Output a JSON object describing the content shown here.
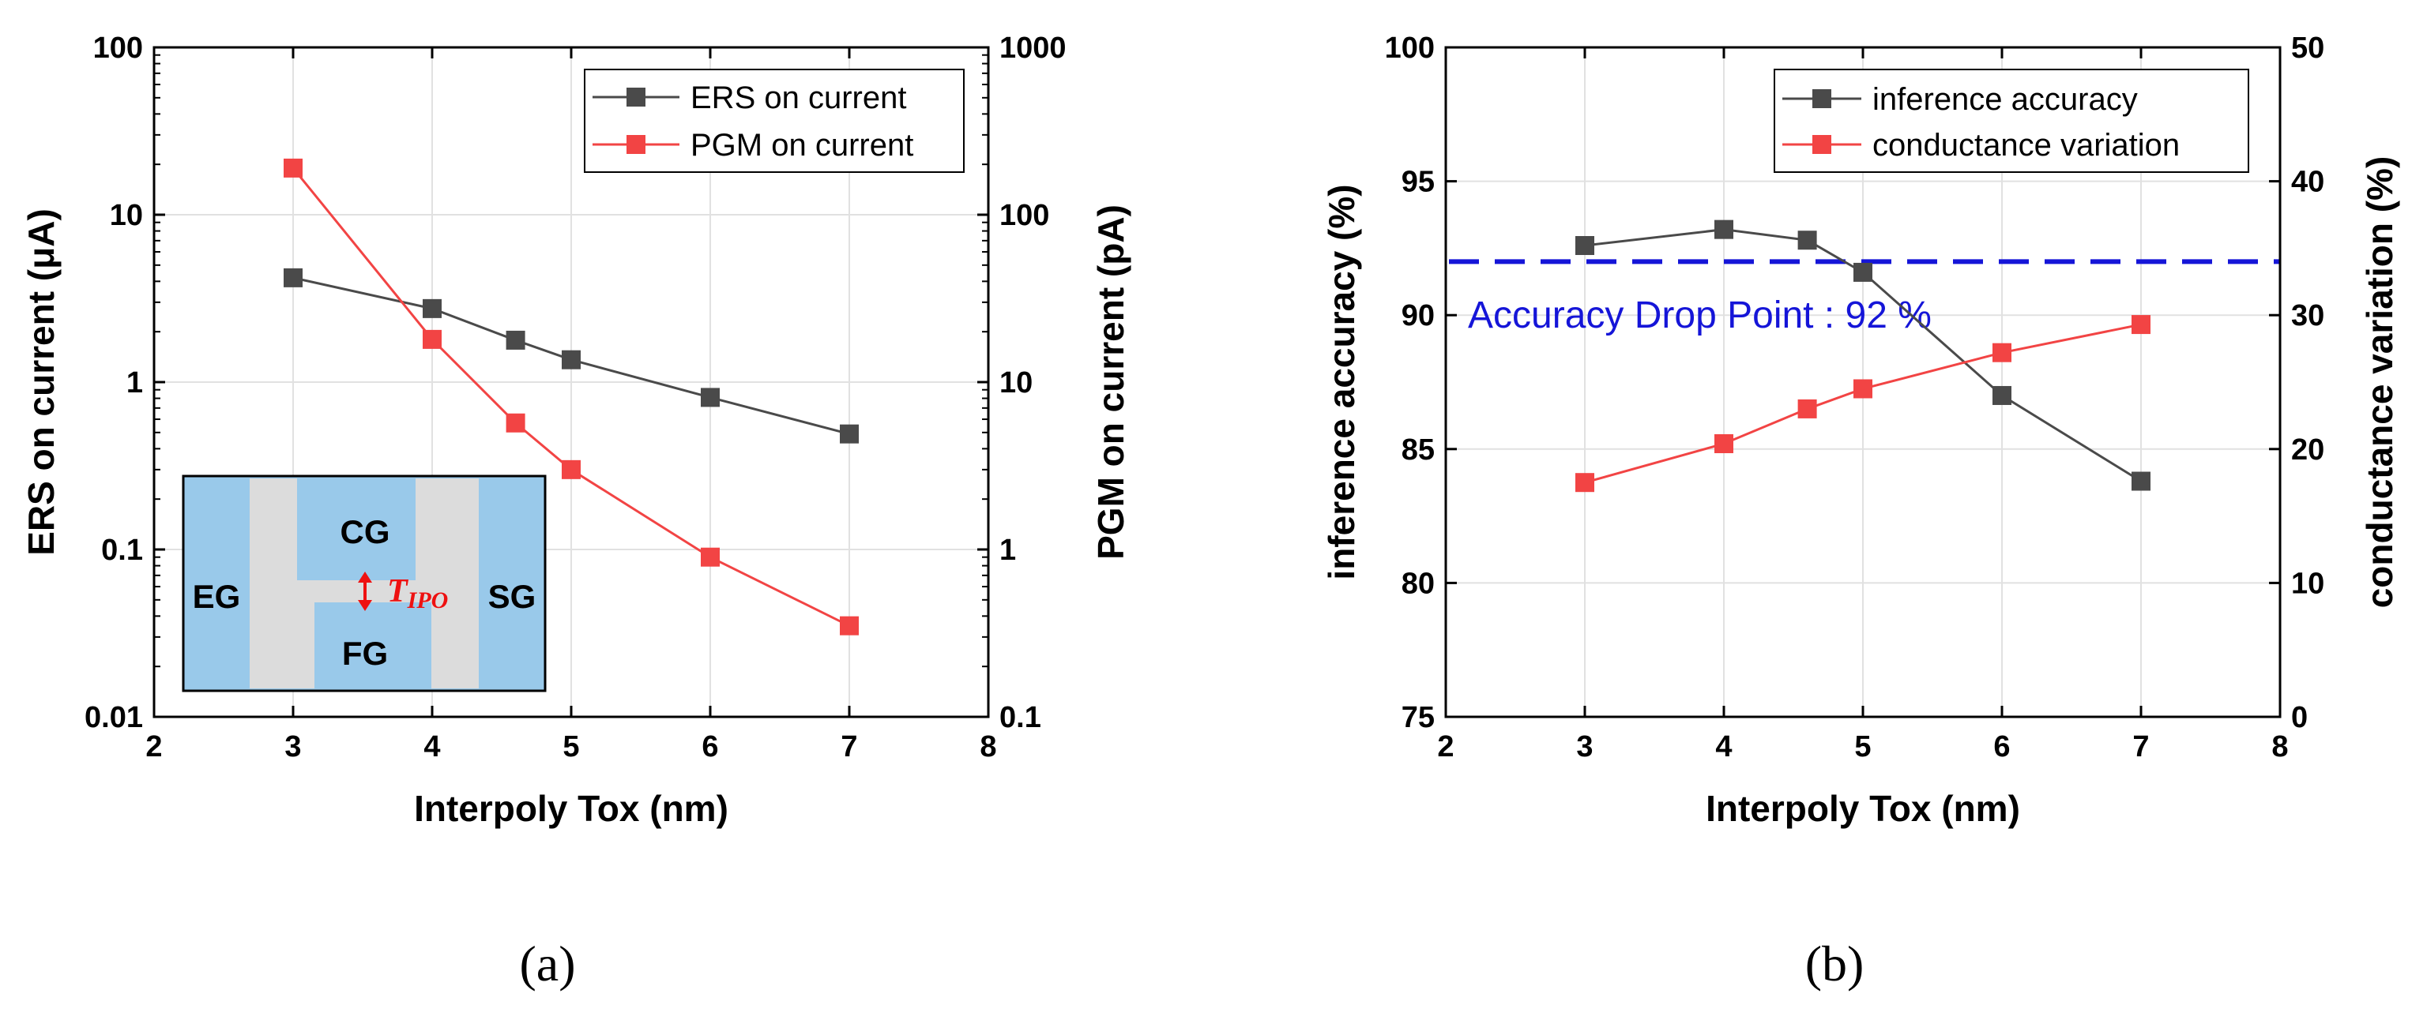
{
  "chart_data": [
    {
      "type": "line",
      "panel_label": "(a)",
      "xlabel": "Interpoly Tox (nm)",
      "ylabel": "ERS on current (μA)",
      "ylabel_right": "PGM on current (pA)",
      "xlim": [
        2,
        8
      ],
      "xticks": [
        "2",
        "3",
        "4",
        "5",
        "6",
        "7",
        "8"
      ],
      "ylim_left": [
        0.01,
        100
      ],
      "yticks_left": [
        "0.01",
        "0.1",
        "1",
        "10",
        "100"
      ],
      "ylim_right": [
        0.1,
        1000
      ],
      "yticks_right": [
        "0.1",
        "1",
        "10",
        "100",
        "1000"
      ],
      "yscale": "log",
      "grid": true,
      "legend_position": "top-right",
      "series": [
        {
          "name": "ERS on current",
          "axis": "left",
          "color": "#4a4a4a",
          "x": [
            3,
            4,
            4.6,
            5,
            6,
            7
          ],
          "y": [
            4.2,
            2.75,
            1.78,
            1.36,
            0.81,
            0.49
          ]
        },
        {
          "name": "PGM on current",
          "axis": "right",
          "color": "#f24444",
          "x": [
            3,
            4,
            4.6,
            5,
            6,
            7
          ],
          "y": [
            190,
            18,
            5.7,
            3.0,
            0.9,
            0.35
          ]
        }
      ],
      "inset": {
        "labels": {
          "cg": "CG",
          "eg": "EG",
          "sg": "SG",
          "fg": "FG",
          "tipo_main": "T",
          "tipo_sub": "IPO"
        },
        "fill_color": "#99c9ea",
        "gap_color": "#dcdcdc",
        "arrow_color": "#ee1111"
      }
    },
    {
      "type": "line",
      "panel_label": "(b)",
      "xlabel": "Interpoly Tox (nm)",
      "ylabel": "inference accuracy (%)",
      "ylabel_right": "conductance variation (%)",
      "xlim": [
        2,
        8
      ],
      "xticks": [
        "2",
        "3",
        "4",
        "5",
        "6",
        "7",
        "8"
      ],
      "ylim_left": [
        75,
        100
      ],
      "yticks_left": [
        "75",
        "80",
        "85",
        "90",
        "95",
        "100"
      ],
      "ylim_right": [
        0,
        50
      ],
      "yticks_right": [
        "0",
        "10",
        "20",
        "30",
        "40",
        "50"
      ],
      "grid": true,
      "legend_position": "top-right",
      "series": [
        {
          "name": "inference accuracy",
          "axis": "left",
          "color": "#4a4a4a",
          "x": [
            3,
            4,
            4.6,
            5,
            6,
            7
          ],
          "y": [
            92.6,
            93.2,
            92.8,
            91.6,
            87.0,
            83.8
          ]
        },
        {
          "name": "conductance variation",
          "axis": "right",
          "color": "#f24444",
          "x": [
            3,
            4,
            4.6,
            5,
            6,
            7
          ],
          "y": [
            17.5,
            20.4,
            23.0,
            24.5,
            27.2,
            29.3
          ]
        }
      ],
      "reference_line": {
        "y": 92,
        "axis": "left",
        "label": "Accuracy Drop Point : 92 %",
        "color": "#1515d8"
      }
    }
  ]
}
